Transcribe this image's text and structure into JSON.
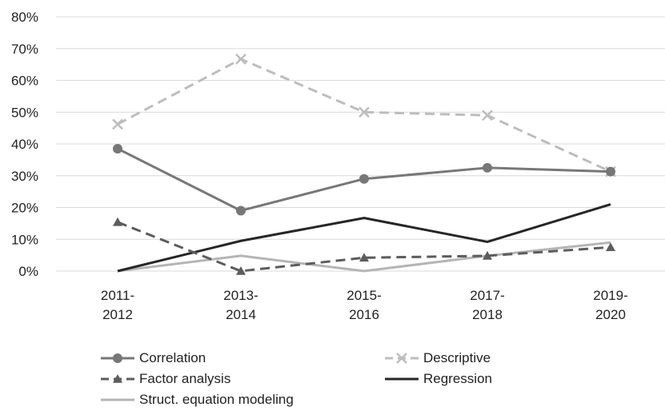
{
  "chart_data": {
    "type": "line",
    "categories": [
      "2011-2012",
      "2013-2014",
      "2015-2016",
      "2017-2018",
      "2019-2020"
    ],
    "category_lines": [
      [
        "2011-",
        "2012"
      ],
      [
        "2013-",
        "2014"
      ],
      [
        "2015-",
        "2016"
      ],
      [
        "2017-",
        "2018"
      ],
      [
        "2019-",
        "2020"
      ]
    ],
    "ylim": [
      0,
      80
    ],
    "ytick_values": [
      0,
      10,
      20,
      30,
      40,
      50,
      60,
      70,
      80
    ],
    "ytick_labels": [
      "0%",
      "10%",
      "20%",
      "30%",
      "40%",
      "50%",
      "60%",
      "70%",
      "80%"
    ],
    "grid": true,
    "legend_position": "bottom",
    "series": [
      {
        "name": "Correlation",
        "values": [
          38.5,
          19,
          29,
          32.5,
          31.3
        ],
        "color": "#777777",
        "dash": "solid",
        "marker": "circle",
        "width": 3
      },
      {
        "name": "Descriptive",
        "values": [
          46.2,
          66.7,
          50,
          49,
          31.3
        ],
        "color": "#bdbdbd",
        "dash": "dashed",
        "marker": "x",
        "width": 3
      },
      {
        "name": "Factor analysis",
        "values": [
          15.4,
          0,
          4.2,
          4.8,
          7.5
        ],
        "color": "#5c5c5c",
        "dash": "dashed",
        "marker": "triangle",
        "width": 3
      },
      {
        "name": "Regression",
        "values": [
          0,
          9.5,
          16.7,
          9.2,
          21
        ],
        "color": "#262626",
        "dash": "solid",
        "marker": "none",
        "width": 3
      },
      {
        "name": "Struct. equation modeling",
        "values": [
          0,
          4.8,
          0,
          4.8,
          9
        ],
        "color": "#b5b5b5",
        "dash": "solid",
        "marker": "none",
        "width": 3
      }
    ]
  }
}
